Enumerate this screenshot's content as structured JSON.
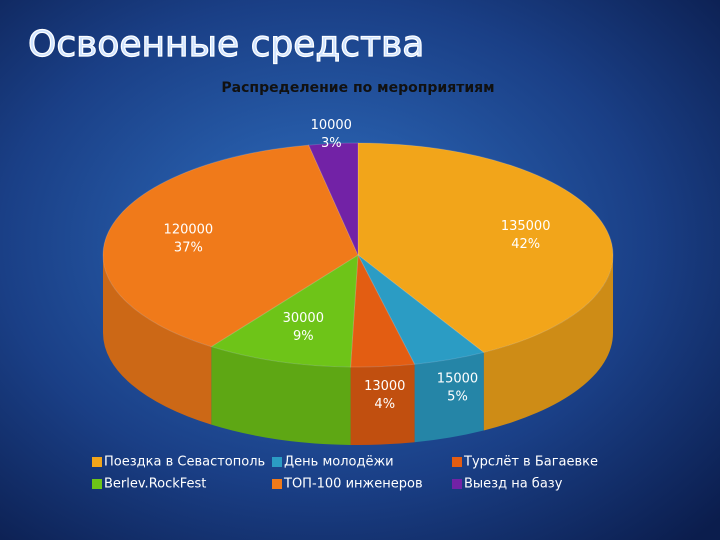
{
  "page_title": "Освоенные средства",
  "chart_data": {
    "type": "pie3d",
    "title": "Распределение по мероприятиям",
    "categories": [
      "Поездка в Севастополь",
      "День молодёжи",
      "Турслёт в Багаевке",
      "Berlev.RockFest",
      "ТОП-100 инженеров",
      "Выезд на базу"
    ],
    "values": [
      135000,
      15000,
      13000,
      30000,
      120000,
      10000
    ],
    "percent_labels": [
      "42%",
      "5%",
      "4%",
      "9%",
      "37%",
      "3%"
    ],
    "colors": [
      "#f2a51a",
      "#2b9cc4",
      "#e35d12",
      "#6ec418",
      "#f07a1a",
      "#7222a6"
    ],
    "legend": "bottom"
  }
}
